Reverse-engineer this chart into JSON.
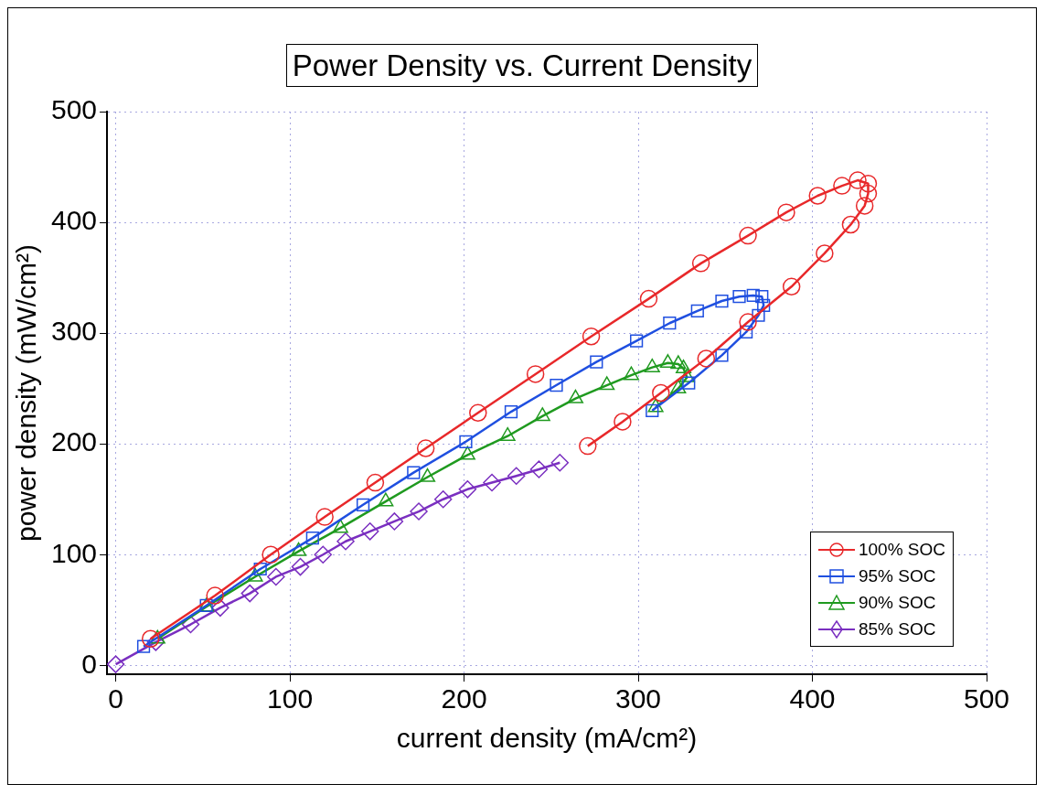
{
  "chart_data": {
    "type": "line",
    "title": "Power Density vs. Current Density",
    "xlabel": "current density (mA/cm²)",
    "ylabel": "power density (mW/cm²)",
    "xlim": [
      -5,
      500
    ],
    "ylim": [
      -8,
      500
    ],
    "xticks": [
      0,
      100,
      200,
      300,
      400,
      500
    ],
    "yticks": [
      0,
      100,
      200,
      300,
      400,
      500
    ],
    "grid": true,
    "legend": "bottom right",
    "line_style": "solid",
    "series": [
      {
        "name": "100% SOC",
        "color": "#e8282a",
        "marker": "circle",
        "x": [
          20,
          57,
          89,
          120,
          149,
          178,
          208,
          241,
          273,
          306,
          336,
          363,
          385,
          403,
          417,
          426,
          432,
          432,
          430,
          422,
          407,
          388,
          363,
          339,
          313,
          291,
          271
        ],
        "values": [
          24,
          63,
          100,
          134,
          165,
          196,
          228,
          263,
          297,
          331,
          363,
          388,
          409,
          424,
          433,
          438,
          435,
          426,
          415,
          398,
          372,
          342,
          310,
          277,
          246,
          220,
          198
        ]
      },
      {
        "name": "95% SOC",
        "color": "#1f4fe0",
        "marker": "square",
        "x": [
          16,
          52,
          83,
          113,
          142,
          171,
          201,
          227,
          253,
          276,
          299,
          318,
          334,
          348,
          358,
          366,
          371,
          372,
          369,
          362,
          348,
          329,
          308
        ],
        "values": [
          17,
          54,
          87,
          115,
          145,
          174,
          202,
          229,
          253,
          274,
          293,
          309,
          320,
          329,
          333,
          334,
          333,
          325,
          316,
          301,
          280,
          255,
          230
        ]
      },
      {
        "name": "90% SOC",
        "color": "#1f9a1f",
        "marker": "triangle",
        "x": [
          24,
          52,
          80,
          105,
          129,
          155,
          179,
          202,
          225,
          245,
          264,
          282,
          296,
          308,
          317,
          323,
          326,
          328,
          323,
          310
        ],
        "values": [
          24,
          53,
          80,
          103,
          124,
          148,
          170,
          190,
          207,
          225,
          241,
          253,
          262,
          269,
          273,
          272,
          268,
          260,
          250,
          233
        ]
      },
      {
        "name": "85% SOC",
        "color": "#7a2fc0",
        "marker": "diamond",
        "x": [
          0,
          23,
          43,
          60,
          77,
          92,
          106,
          119,
          132,
          146,
          160,
          174,
          188,
          202,
          216,
          230,
          243,
          255
        ],
        "values": [
          1,
          21,
          37,
          52,
          65,
          80,
          89,
          100,
          112,
          121,
          130,
          139,
          150,
          159,
          165,
          171,
          177,
          183
        ]
      }
    ]
  }
}
